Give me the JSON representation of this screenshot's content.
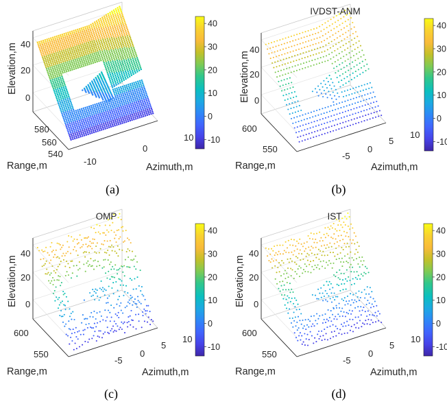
{
  "colormap": [
    "#3e26a8",
    "#4743e8",
    "#4164fd",
    "#2e87f7",
    "#1ca9e2",
    "#0bbfbf",
    "#31c78b",
    "#7fca54",
    "#c4c029",
    "#f9bb3a",
    "#f9d230",
    "#f9fb15"
  ],
  "panels": [
    {
      "title": "",
      "caption": "(a)"
    },
    {
      "title": "IVDST-ANM",
      "caption": "(b)"
    },
    {
      "title": "OMP",
      "caption": "(c)"
    },
    {
      "title": "IST",
      "caption": "(d)"
    }
  ],
  "chart_data": [
    {
      "type": "scatter3d",
      "title": "",
      "caption": "(a)",
      "style": "dense-lines",
      "xlabel": "Azimuth,m",
      "ylabel": "Range,m",
      "zlabel": "Elevation,m",
      "xticks": [
        "-10",
        "0",
        "10"
      ],
      "yticks": [
        "540",
        "560",
        "580"
      ],
      "zticks": [
        "0",
        "20",
        "40"
      ],
      "xlim": [
        -13,
        13
      ],
      "ylim": [
        530,
        590
      ],
      "zlim": [
        -14,
        45
      ],
      "colorbar": {
        "ticks": [
          "-10",
          "0",
          "10",
          "20",
          "30",
          "40"
        ],
        "range": [
          -14,
          43
        ]
      }
    },
    {
      "type": "scatter3d",
      "title": "IVDST-ANM",
      "caption": "(b)",
      "style": "dots",
      "xlabel": "Azimuth,m",
      "ylabel": "Range,m",
      "zlabel": "Elevation,m",
      "xticks": [
        "-5",
        "0",
        "5",
        "10"
      ],
      "yticks": [
        "550",
        "600"
      ],
      "zticks": [
        "0",
        "20",
        "40"
      ],
      "xlim": [
        -9,
        12
      ],
      "ylim": [
        530,
        610
      ],
      "zlim": [
        -14,
        45
      ],
      "colorbar": {
        "ticks": [
          "-10",
          "0",
          "10",
          "20",
          "30",
          "40"
        ],
        "range": [
          -14,
          43
        ]
      }
    },
    {
      "type": "scatter3d",
      "title": "OMP",
      "caption": "(c)",
      "style": "dots-noisy",
      "xlabel": "Azimuth,m",
      "ylabel": "Range,m",
      "zlabel": "Elevation,m",
      "xticks": [
        "-5",
        "0",
        "5",
        "10"
      ],
      "yticks": [
        "550",
        "600"
      ],
      "zticks": [
        "0",
        "20",
        "40"
      ],
      "xlim": [
        -9,
        12
      ],
      "ylim": [
        530,
        610
      ],
      "zlim": [
        -14,
        45
      ],
      "colorbar": {
        "ticks": [
          "-10",
          "0",
          "10",
          "20",
          "30",
          "40"
        ],
        "range": [
          -14,
          43
        ]
      }
    },
    {
      "type": "scatter3d",
      "title": "IST",
      "caption": "(d)",
      "style": "dots-mid",
      "xlabel": "Azimuth,m",
      "ylabel": "Range,m",
      "zlabel": "Elevation,m",
      "xticks": [
        "-5",
        "0",
        "5",
        "10"
      ],
      "yticks": [
        "550",
        "600"
      ],
      "zticks": [
        "0",
        "20",
        "40"
      ],
      "xlim": [
        -9,
        12
      ],
      "ylim": [
        530,
        610
      ],
      "zlim": [
        -14,
        45
      ],
      "colorbar": {
        "ticks": [
          "-10",
          "0",
          "10",
          "20",
          "30",
          "40"
        ],
        "range": [
          -14,
          43
        ]
      }
    }
  ]
}
